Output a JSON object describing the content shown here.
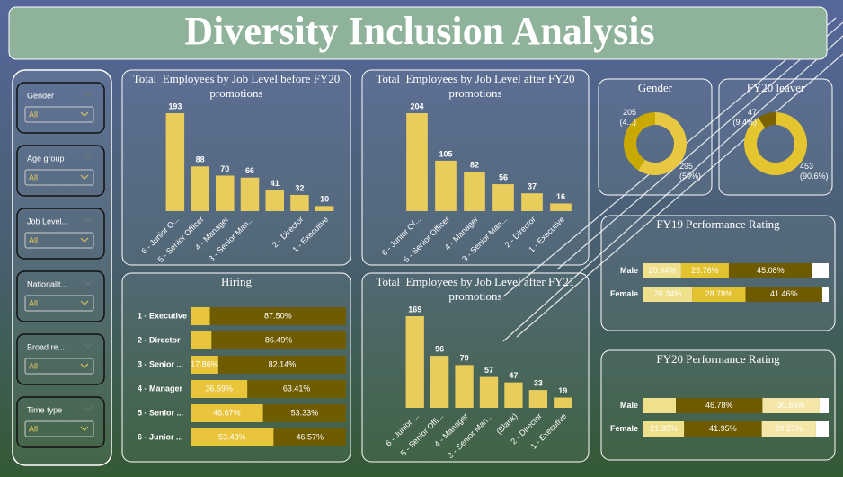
{
  "title": "Diversity Inclusion Analysis",
  "slicers": [
    {
      "label": "Gender",
      "value": "All"
    },
    {
      "label": "Age group",
      "value": "All"
    },
    {
      "label": "Job Level...",
      "value": "All"
    },
    {
      "label": "Nationalit...",
      "value": "All"
    },
    {
      "label": "Broad re...",
      "value": "All"
    },
    {
      "label": "Time type",
      "value": "All"
    }
  ],
  "chart_data": [
    {
      "type": "bar",
      "title": "Total_Employees by Job Level before FY20 promotions",
      "categories": [
        "6 - Junior O...",
        "5 - Senior Officer",
        "4 - Manager",
        "3 - Senior Man...",
        null,
        "2 - Director",
        "1 - Executive"
      ],
      "values": [
        193,
        88,
        70,
        66,
        41,
        32,
        10
      ],
      "color": "#e8cc5c"
    },
    {
      "type": "bar",
      "title": "Total_Employees by Job Level after FY20 promotions",
      "categories": [
        "6 - Junior Of...",
        "5 - Senior Officer",
        "4 - Manager",
        "3 - Senior Man...",
        "2 - Director",
        "1 - Executive"
      ],
      "values": [
        204,
        105,
        82,
        56,
        37,
        16
      ],
      "color": "#e8cc5c"
    },
    {
      "type": "hbar_stacked",
      "title": "Hiring",
      "categories": [
        "1 - Executive",
        "2 - Director",
        "3 - Senior ...",
        "4 - Manager",
        "5 - Senior ...",
        "6 - Junior ..."
      ],
      "series": [
        {
          "color": "#e8c53a",
          "values": [
            12.5,
            13.51,
            17.86,
            36.59,
            46.67,
            53.43
          ],
          "value_labels": [
            null,
            null,
            "17.86%",
            "36.59%",
            "46.67%",
            "53.43%"
          ]
        },
        {
          "color": "#6f5b00",
          "values": [
            87.5,
            86.49,
            82.14,
            63.41,
            53.33,
            46.57
          ],
          "value_labels": [
            "87.50%",
            "86.49%",
            "82.14%",
            "63.41%",
            "53.33%",
            "46.57%"
          ]
        }
      ]
    },
    {
      "type": "bar",
      "title": "Total_Employees by Job Level after FY21 promotions",
      "categories": [
        "6 - Junior ...",
        "5 - Senior Offi...",
        "4 - Manager",
        "3 - Senior Man...",
        "(Blank)",
        "2 - Director",
        "1 - Executive"
      ],
      "values": [
        169,
        96,
        79,
        57,
        47,
        33,
        19
      ],
      "color": "#e8cc5c"
    },
    {
      "type": "donut",
      "title": "Gender",
      "values": [
        205,
        295
      ],
      "value_labels": [
        "205\n(4...)",
        "295\n(59%)"
      ],
      "colors": [
        "#c9a800",
        "#e8c840"
      ]
    },
    {
      "type": "donut",
      "title": "FY20 leaver",
      "values": [
        47,
        453
      ],
      "value_labels": [
        "47\n(9.4%)",
        "453\n(90.6%)"
      ],
      "colors": [
        "#7a6200",
        "#e4c530"
      ]
    },
    {
      "type": "hbar_stacked",
      "title": "FY19 Performance Rating",
      "categories": [
        "Male",
        "Female"
      ],
      "series": [
        {
          "color": "#efe08c",
          "values": [
            20.34,
            26.34
          ],
          "value_labels": [
            "20.34%",
            "26.34%"
          ]
        },
        {
          "color": "#e3c230",
          "values": [
            25.76,
            28.78
          ],
          "value_labels": [
            "25.76%",
            "28.78%"
          ]
        },
        {
          "color": "#6e5a00",
          "values": [
            45.08,
            41.46
          ],
          "value_labels": [
            "45.08%",
            "41.46%"
          ]
        },
        {
          "color": "#ffffff",
          "values": [
            8.82,
            3.42
          ],
          "value_labels": [
            null,
            null
          ]
        }
      ]
    },
    {
      "type": "hbar_stacked",
      "title": "FY20 Performance Rating",
      "categories": [
        "Male",
        "Female"
      ],
      "series": [
        {
          "color": "#efe08c",
          "values": [
            17.5,
            21.95
          ],
          "value_labels": [
            null,
            "21.95%"
          ]
        },
        {
          "color": "#6e5a00",
          "values": [
            46.78,
            41.95
          ],
          "value_labels": [
            "46.78%",
            "41.95%"
          ]
        },
        {
          "color": "#f3e6a6",
          "values": [
            30.85,
            29.27
          ],
          "value_labels": [
            "30.85%",
            "29.27%"
          ]
        },
        {
          "color": "#ffffff",
          "values": [
            4.87,
            6.83
          ],
          "value_labels": [
            null,
            null
          ]
        }
      ]
    }
  ]
}
